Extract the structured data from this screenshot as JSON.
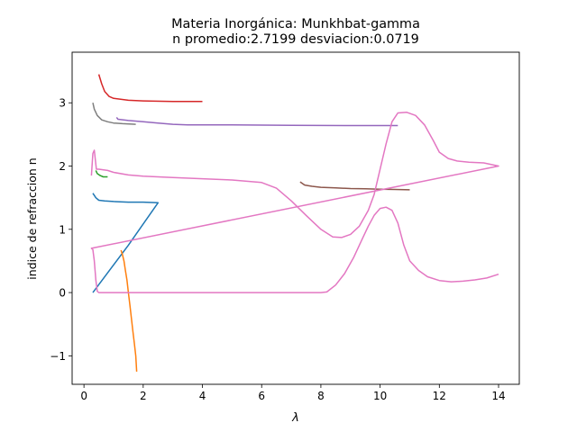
{
  "chart_data": {
    "type": "line",
    "title_line1": "Materia Inorgánica: Munkhbat-gamma",
    "title_line2": "n promedio:2.7199 desviacion:0.0719",
    "xlabel": "λ",
    "ylabel": "indice de refraccion n",
    "xlim": [
      -0.4,
      14.7
    ],
    "ylim": [
      -1.45,
      3.8
    ],
    "xticks": [
      0,
      2,
      4,
      6,
      8,
      10,
      12,
      14
    ],
    "yticks": [
      -1,
      0,
      1,
      2,
      3
    ],
    "ytick_labels": [
      "−1",
      "0",
      "1",
      "2",
      "3"
    ],
    "grid": false,
    "legend": "none",
    "series": [
      {
        "color": "#1f77b4",
        "points": [
          [
            0.3,
            1.57
          ],
          [
            0.4,
            1.5
          ],
          [
            0.5,
            1.46
          ],
          [
            0.7,
            1.45
          ],
          [
            1.0,
            1.44
          ],
          [
            1.5,
            1.43
          ],
          [
            2.0,
            1.43
          ],
          [
            2.5,
            1.42
          ],
          [
            1.5,
            0.75
          ],
          [
            0.3,
            0.0
          ]
        ]
      },
      {
        "color": "#ff7f0e",
        "points": [
          [
            1.25,
            0.67
          ],
          [
            1.3,
            0.6
          ],
          [
            1.35,
            0.5
          ],
          [
            1.4,
            0.35
          ],
          [
            1.45,
            0.2
          ],
          [
            1.5,
            0.0
          ],
          [
            1.55,
            -0.2
          ],
          [
            1.6,
            -0.4
          ],
          [
            1.65,
            -0.6
          ],
          [
            1.7,
            -0.8
          ],
          [
            1.75,
            -1.0
          ],
          [
            1.78,
            -1.25
          ]
        ]
      },
      {
        "color": "#2ca02c",
        "points": [
          [
            0.4,
            1.93
          ],
          [
            0.45,
            1.88
          ],
          [
            0.55,
            1.85
          ],
          [
            0.65,
            1.83
          ],
          [
            0.8,
            1.83
          ]
        ]
      },
      {
        "color": "#d62728",
        "points": [
          [
            0.5,
            3.45
          ],
          [
            0.6,
            3.3
          ],
          [
            0.7,
            3.18
          ],
          [
            0.85,
            3.1
          ],
          [
            1.0,
            3.07
          ],
          [
            1.5,
            3.04
          ],
          [
            2.0,
            3.03
          ],
          [
            3.0,
            3.02
          ],
          [
            4.0,
            3.02
          ]
        ]
      },
      {
        "color": "#9467bd",
        "points": [
          [
            1.1,
            2.77
          ],
          [
            1.15,
            2.74
          ],
          [
            1.5,
            2.72
          ],
          [
            2.0,
            2.7
          ],
          [
            2.5,
            2.68
          ],
          [
            3.0,
            2.66
          ],
          [
            3.5,
            2.65
          ],
          [
            5.0,
            2.65
          ],
          [
            7.0,
            2.645
          ],
          [
            9.0,
            2.64
          ],
          [
            10.6,
            2.64
          ]
        ]
      },
      {
        "color": "#8c564b",
        "points": [
          [
            7.3,
            1.75
          ],
          [
            7.45,
            1.7
          ],
          [
            7.7,
            1.68
          ],
          [
            8.0,
            1.665
          ],
          [
            8.5,
            1.655
          ],
          [
            9.0,
            1.645
          ],
          [
            9.5,
            1.64
          ],
          [
            10.0,
            1.635
          ],
          [
            10.5,
            1.63
          ],
          [
            11.0,
            1.625
          ]
        ]
      },
      {
        "color": "#e377c2",
        "points": [
          [
            0.25,
            1.85
          ],
          [
            0.3,
            2.2
          ],
          [
            0.35,
            2.25
          ],
          [
            0.42,
            1.95
          ],
          [
            0.5,
            1.95
          ],
          [
            0.8,
            1.93
          ],
          [
            1.0,
            1.9
          ],
          [
            1.5,
            1.86
          ],
          [
            2.0,
            1.84
          ],
          [
            3.0,
            1.82
          ],
          [
            4.0,
            1.8
          ],
          [
            5.0,
            1.78
          ],
          [
            6.0,
            1.74
          ],
          [
            6.5,
            1.65
          ],
          [
            7.0,
            1.45
          ],
          [
            7.5,
            1.22
          ],
          [
            8.0,
            1.0
          ],
          [
            8.4,
            0.88
          ],
          [
            8.7,
            0.87
          ],
          [
            9.0,
            0.92
          ],
          [
            9.3,
            1.05
          ],
          [
            9.6,
            1.3
          ],
          [
            9.8,
            1.55
          ],
          [
            10.0,
            1.95
          ],
          [
            10.2,
            2.35
          ],
          [
            10.4,
            2.7
          ],
          [
            10.6,
            2.84
          ],
          [
            10.9,
            2.85
          ],
          [
            11.2,
            2.8
          ],
          [
            11.5,
            2.65
          ],
          [
            11.8,
            2.4
          ],
          [
            12.0,
            2.22
          ],
          [
            12.3,
            2.12
          ],
          [
            12.6,
            2.08
          ],
          [
            13.0,
            2.06
          ],
          [
            13.5,
            2.05
          ],
          [
            14.0,
            2.0
          ],
          [
            0.25,
            0.7
          ],
          [
            0.3,
            0.68
          ],
          [
            0.35,
            0.5
          ],
          [
            0.4,
            0.2
          ],
          [
            0.45,
            0.02
          ],
          [
            0.5,
            0.0
          ],
          [
            1.0,
            0.0
          ],
          [
            2.0,
            0.0
          ],
          [
            4.0,
            0.0
          ],
          [
            6.0,
            0.0
          ],
          [
            7.0,
            0.0
          ],
          [
            8.0,
            0.0
          ],
          [
            8.2,
            0.01
          ],
          [
            8.5,
            0.12
          ],
          [
            8.8,
            0.3
          ],
          [
            9.1,
            0.55
          ],
          [
            9.4,
            0.85
          ],
          [
            9.6,
            1.05
          ],
          [
            9.8,
            1.22
          ],
          [
            10.0,
            1.33
          ],
          [
            10.2,
            1.35
          ],
          [
            10.4,
            1.3
          ],
          [
            10.6,
            1.1
          ],
          [
            10.8,
            0.75
          ],
          [
            11.0,
            0.5
          ],
          [
            11.3,
            0.35
          ],
          [
            11.6,
            0.25
          ],
          [
            12.0,
            0.19
          ],
          [
            12.4,
            0.17
          ],
          [
            12.8,
            0.18
          ],
          [
            13.2,
            0.2
          ],
          [
            13.6,
            0.23
          ],
          [
            14.0,
            0.29
          ]
        ]
      },
      {
        "color": "#7f7f7f",
        "points": [
          [
            0.3,
            3.0
          ],
          [
            0.35,
            2.9
          ],
          [
            0.45,
            2.8
          ],
          [
            0.6,
            2.73
          ],
          [
            0.8,
            2.7
          ],
          [
            1.0,
            2.68
          ],
          [
            1.3,
            2.67
          ],
          [
            1.75,
            2.66
          ]
        ]
      },
      {
        "color": "#bcbd22",
        "points": []
      },
      {
        "color": "#17becf",
        "points": []
      }
    ]
  }
}
